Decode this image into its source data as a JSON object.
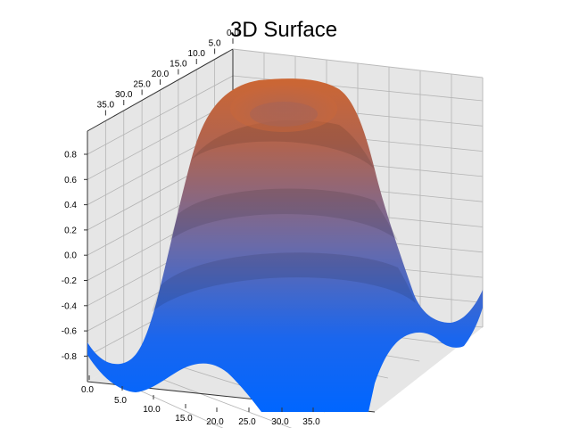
{
  "chart_data": {
    "type": "surface3d",
    "title": "3D Surface",
    "xlabel": "",
    "ylabel": "",
    "zlabel": "",
    "x_ticks": [
      "0.0",
      "5.0",
      "10.0",
      "15.0",
      "20.0",
      "25.0",
      "30.0",
      "35.0"
    ],
    "y_ticks": [
      "0.0",
      "5.0",
      "10.0",
      "15.0",
      "20.0",
      "25.0",
      "30.0",
      "35.0"
    ],
    "z_ticks": [
      "0.8",
      "0.6",
      "0.4",
      "0.2",
      "0.0",
      "-0.2",
      "-0.4",
      "-0.6",
      "-0.8"
    ],
    "x_range": [
      0,
      40
    ],
    "y_range": [
      0,
      40
    ],
    "z_range": [
      -1.0,
      1.0
    ],
    "function_description": "Radial sinc-like ripple z = cos(r) shaped surface centered at grid middle; peak plateau ~1.0 with slight dip at center, trough ~-0.9 near corners and edges",
    "colorscale": {
      "low": "#0066ff",
      "high": "#cc6633"
    },
    "grid": true,
    "legend": false
  },
  "colors": {
    "pane": "#e6e6e6",
    "gridline": "#b0b0b0",
    "axis": "#333333",
    "surface_low": "#0066ff",
    "surface_high": "#cc6633"
  }
}
